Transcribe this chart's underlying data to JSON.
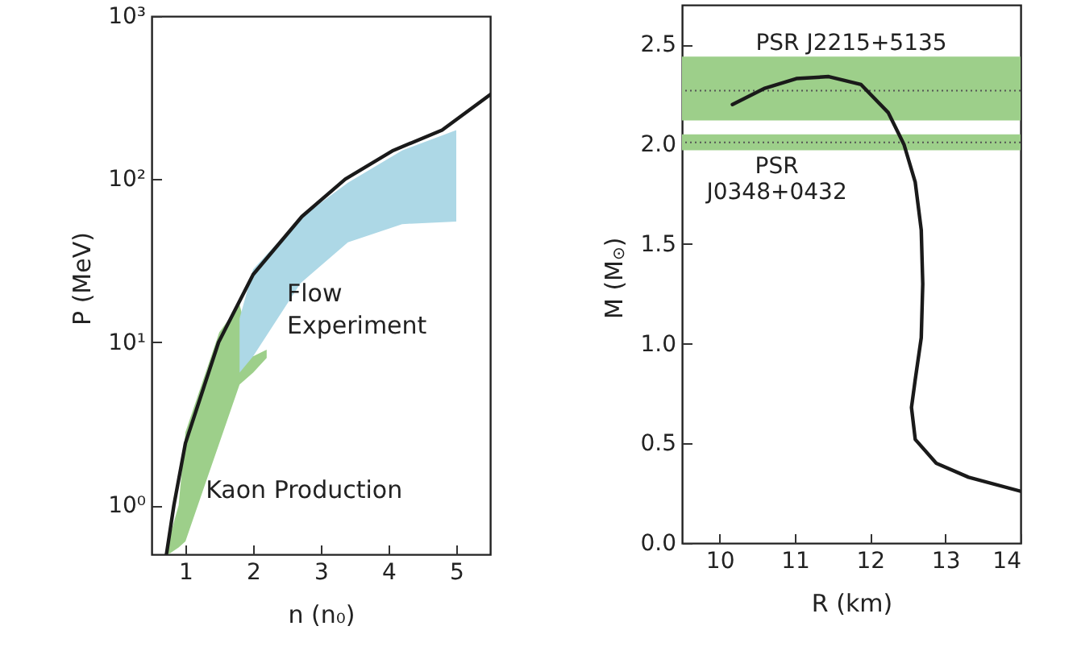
{
  "chart_data": [
    {
      "type": "line",
      "xlabel": "n (n₀)",
      "ylabel": "P (MeV)",
      "log": true,
      "xlim": [
        0.5,
        5.5
      ],
      "xticks": [
        1,
        2,
        3,
        4,
        5
      ],
      "ylim": [
        0.5,
        1000
      ],
      "yticks": [
        {
          "value": 1,
          "label": "10⁰"
        },
        {
          "value": 10,
          "label": "10¹"
        },
        {
          "value": 100,
          "label": "10²"
        },
        {
          "value": 1000,
          "label": "10³"
        }
      ],
      "series": [
        {
          "type": "area",
          "color": "#9dcf8a",
          "x": [
            0.75,
            0.9,
            1.0,
            1.5,
            1.8,
            2.0,
            2.2
          ],
          "values": [
            null,
            null,
            null,
            null,
            null,
            null,
            null
          ],
          "lower": [
            0.5,
            0.55,
            0.6,
            2.4,
            5.5,
            6.5,
            8
          ],
          "upper": [
            0.6,
            1.0,
            2.8,
            11.5,
            17,
            8.2,
            9
          ]
        },
        {
          "type": "area",
          "color": "#add8e6",
          "x": [
            1.8,
            2.0,
            2.7,
            3.4,
            4.2,
            5.0
          ],
          "values": [
            null,
            null,
            null,
            null,
            null,
            null
          ],
          "lower": [
            6.5,
            8.2,
            23,
            41,
            53,
            55
          ],
          "upper": [
            14,
            28,
            58,
            95,
            150,
            200
          ]
        },
        {
          "color": "#1a1a1a",
          "x": [
            0.72,
            0.83,
            1.0,
            1.49,
            2.0,
            2.72,
            3.36,
            4.07,
            4.79,
            5.5
          ],
          "values": [
            0.5,
            1.0,
            2.4,
            10,
            26,
            59,
            100,
            150,
            200,
            330
          ]
        }
      ],
      "annotations": [
        {
          "text": "Flow\nExperiment",
          "x": 2.5,
          "y": 20
        },
        "Kaon Production"
      ]
    },
    {
      "type": "line",
      "xlabel": "R (km)",
      "ylabel": "M (M$_{⊙}$)",
      "xlim": [
        9.5,
        14
      ],
      "xticks": [
        10,
        11,
        12,
        13,
        14
      ],
      "ylim": [
        0,
        2.7
      ],
      "yticks": [
        {
          "value": 0,
          "label": "0.0"
        },
        0.5,
        {
          "value": 1,
          "label": "1.0"
        },
        1.5,
        {
          "value": 2,
          "label": "2.0"
        },
        2.5
      ],
      "bands": [
        {
          "axis": "y",
          "from": 2.12,
          "to": 2.44,
          "label": "PSR J2215+5135",
          "color": "#9dcf8a"
        },
        {
          "axis": "y",
          "from": 1.97,
          "to": 2.05,
          "label": "PSR\nJ0348+0432",
          "color": "#9dcf8a"
        }
      ],
      "ref_lines": [
        {
          "axis": "y",
          "value": 2.27,
          "color": "#555555",
          "line_style": "dotted"
        },
        {
          "axis": "y",
          "value": 2.01,
          "color": "#555555",
          "line_style": "dotted"
        }
      ],
      "series": [
        {
          "color": "#1a1a1a",
          "x": [
            10.17,
            10.59,
            11.02,
            11.45,
            11.88,
            12.24,
            12.45,
            12.6,
            12.68,
            12.7,
            12.68,
            12.6,
            12.55,
            12.6,
            12.88,
            13.31,
            14.0
          ],
          "values": [
            2.2,
            2.28,
            2.33,
            2.34,
            2.3,
            2.16,
            2.0,
            1.81,
            1.57,
            1.3,
            1.03,
            0.82,
            0.68,
            0.52,
            0.4,
            0.33,
            0.26
          ]
        }
      ]
    }
  ]
}
